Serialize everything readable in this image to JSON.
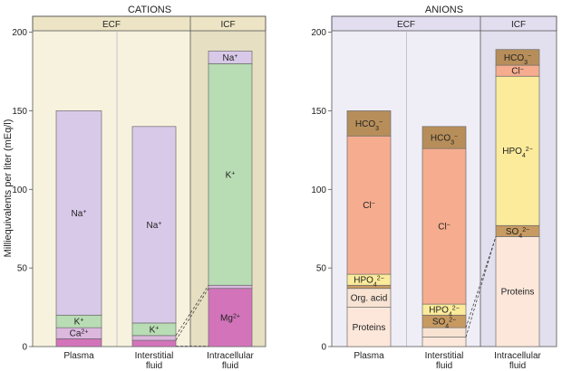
{
  "y_axis_label": "Milliequivalents per liter (mEq/l)",
  "colors": {
    "ecf_bg": "#f6f2de",
    "icf_bg": "#e6dfc2",
    "icf_bg_anions": "#e2e0ee",
    "ecf_bg_anions": "#efeef7",
    "header_bg_cations": "#ece4c4",
    "header_bg_anions": "#e2def0",
    "na": "#d9c9e9",
    "k": "#b8dcb4",
    "ca": "#dcb8df",
    "mg": "#d374bb",
    "hco3": "#b78e5a",
    "cl": "#f6ad8f",
    "hpo4": "#fbeb9b",
    "so4": "#c79a62",
    "org_acid": "#f8e3d2",
    "proteins": "#fde7da"
  },
  "chart_data": [
    {
      "type": "bar",
      "stacked": true,
      "title": "CATIONS",
      "ylabel": "Milliequivalents per liter (mEq/l)",
      "ylim": [
        0,
        200
      ],
      "yticks": [
        0,
        50,
        100,
        150,
        200
      ],
      "regions": [
        {
          "label": "ECF",
          "categories": [
            "Plasma",
            "Interstitial fluid"
          ]
        },
        {
          "label": "ICF",
          "categories": [
            "Intracellular fluid"
          ]
        }
      ],
      "categories": [
        "Plasma",
        "Interstitial fluid",
        "Intracellular fluid"
      ],
      "category_labels": [
        [
          "Plasma"
        ],
        [
          "Interstitial",
          "fluid"
        ],
        [
          "Intracellular",
          "fluid"
        ]
      ],
      "bars": [
        {
          "category": "Plasma",
          "segments": [
            {
              "ion": "Mg2+",
              "label": "",
              "from": 0,
              "to": 5,
              "color_key": "mg"
            },
            {
              "ion": "Ca2+",
              "label": "Ca",
              "sup": "2+",
              "from": 5,
              "to": 12,
              "color_key": "ca"
            },
            {
              "ion": "K+",
              "label": "K",
              "sup": "+",
              "from": 12,
              "to": 20,
              "color_key": "k"
            },
            {
              "ion": "Na+",
              "label": "Na",
              "sup": "+",
              "from": 20,
              "to": 150,
              "color_key": "na"
            }
          ]
        },
        {
          "category": "Interstitial fluid",
          "segments": [
            {
              "ion": "Mg2+",
              "label": "",
              "from": 0,
              "to": 4,
              "color_key": "mg"
            },
            {
              "ion": "Ca2+",
              "label": "",
              "from": 4,
              "to": 7,
              "color_key": "ca"
            },
            {
              "ion": "K+",
              "label": "K",
              "sup": "+",
              "from": 7,
              "to": 15,
              "color_key": "k"
            },
            {
              "ion": "Na+",
              "label": "Na",
              "sup": "+",
              "from": 15,
              "to": 140,
              "color_key": "na"
            }
          ]
        },
        {
          "category": "Intracellular fluid",
          "segments": [
            {
              "ion": "Mg2+",
              "label": "Mg",
              "sup": "2+",
              "from": 0,
              "to": 37,
              "color_key": "mg"
            },
            {
              "ion": "Ca2+",
              "label": "",
              "from": 37,
              "to": 39,
              "color_key": "ca"
            },
            {
              "ion": "K+",
              "label": "K",
              "sup": "+",
              "from": 39,
              "to": 180,
              "color_key": "k"
            },
            {
              "ion": "Na+",
              "label": "Na",
              "sup": "+",
              "from": 180,
              "to": 188,
              "color_key": "na"
            }
          ]
        }
      ]
    },
    {
      "type": "bar",
      "stacked": true,
      "title": "ANIONS",
      "ylim": [
        0,
        200
      ],
      "yticks": [
        0,
        50,
        100,
        150,
        200
      ],
      "regions": [
        {
          "label": "ECF",
          "categories": [
            "Plasma",
            "Interstitial fluid"
          ]
        },
        {
          "label": "ICF",
          "categories": [
            "Intracellular fluid"
          ]
        }
      ],
      "categories": [
        "Plasma",
        "Interstitial fluid",
        "Intracellular fluid"
      ],
      "category_labels": [
        [
          "Plasma"
        ],
        [
          "Interstitial",
          "fluid"
        ],
        [
          "Intracellular",
          "fluid"
        ]
      ],
      "bars": [
        {
          "category": "Plasma",
          "segments": [
            {
              "ion": "Proteins",
              "label": "Proteins",
              "from": 0,
              "to": 25,
              "color_key": "proteins"
            },
            {
              "ion": "Org. acid",
              "label": "Org. acid",
              "from": 25,
              "to": 37,
              "color_key": "org_acid"
            },
            {
              "ion": "SO42-",
              "label": "",
              "from": 37,
              "to": 39,
              "color_key": "so4"
            },
            {
              "ion": "HPO42-",
              "label": "HPO",
              "sub": "4",
              "sup": "2-",
              "from": 39,
              "to": 46,
              "color_key": "hpo4"
            },
            {
              "ion": "Cl-",
              "label": "Cl",
              "sup": "-",
              "from": 46,
              "to": 134,
              "color_key": "cl"
            },
            {
              "ion": "HCO3-",
              "label": "HCO",
              "sub": "3",
              "sup": "-",
              "from": 134,
              "to": 150,
              "color_key": "hco3"
            }
          ]
        },
        {
          "category": "Interstitial fluid",
          "segments": [
            {
              "ion": "Proteins",
              "label": "",
              "from": 0,
              "to": 6,
              "color_key": "proteins"
            },
            {
              "ion": "Org. acid",
              "label": "",
              "from": 6,
              "to": 12,
              "color_key": "org_acid"
            },
            {
              "ion": "SO42-",
              "label": "SO",
              "sub": "4",
              "sup": "2-",
              "from": 12,
              "to": 20,
              "color_key": "so4"
            },
            {
              "ion": "HPO42-",
              "label": "HPO",
              "sub": "4",
              "sup": "2-",
              "from": 20,
              "to": 27,
              "color_key": "hpo4"
            },
            {
              "ion": "Cl-",
              "label": "Cl",
              "sup": "-",
              "from": 27,
              "to": 126,
              "color_key": "cl"
            },
            {
              "ion": "HCO3-",
              "label": "HCO",
              "sub": "3",
              "sup": "-",
              "from": 126,
              "to": 140,
              "color_key": "hco3"
            }
          ]
        },
        {
          "category": "Intracellular fluid",
          "segments": [
            {
              "ion": "Proteins",
              "label": "Proteins",
              "from": 0,
              "to": 70,
              "color_key": "proteins"
            },
            {
              "ion": "SO42-",
              "label": "SO",
              "sub": "4",
              "sup": "2-",
              "from": 70,
              "to": 77,
              "color_key": "so4"
            },
            {
              "ion": "HPO42-",
              "label": "HPO",
              "sub": "4",
              "sup": "2-",
              "from": 77,
              "to": 172,
              "color_key": "hpo4"
            },
            {
              "ion": "Cl-",
              "label": "Cl",
              "sup": "-",
              "from": 172,
              "to": 179,
              "color_key": "cl"
            },
            {
              "ion": "HCO3-",
              "label": "HCO",
              "sub": "3",
              "sup": "-",
              "from": 179,
              "to": 189,
              "color_key": "hco3"
            }
          ]
        }
      ]
    }
  ]
}
